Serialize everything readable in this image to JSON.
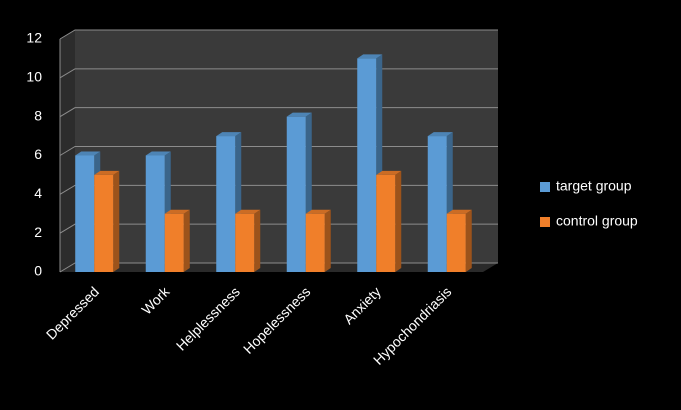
{
  "chart_data": {
    "type": "bar",
    "categories": [
      "Depressed",
      "Work",
      "Helplessness",
      "Hopelessness",
      "Anxiety",
      "Hypochondriasis"
    ],
    "series": [
      {
        "name": "target group",
        "color": "#5b9bd5",
        "values": [
          6,
          6,
          7,
          8,
          11,
          7
        ]
      },
      {
        "name": "control group",
        "color": "#f07f2a",
        "values": [
          5,
          3,
          3,
          3,
          5,
          3
        ]
      }
    ],
    "ylim": [
      0,
      12
    ],
    "yticks": [
      0,
      2,
      4,
      6,
      8,
      10,
      12
    ],
    "grid": true,
    "legend": "right"
  }
}
